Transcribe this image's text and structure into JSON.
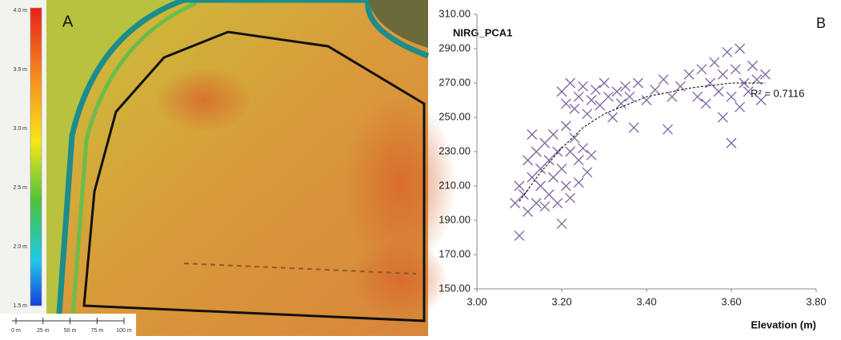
{
  "map": {
    "panel_label": "A",
    "colorbar_labels": [
      "4.0 m",
      "3.5 m",
      "3.0 m",
      "2.5 m",
      "2.0 m",
      "1.5 m"
    ],
    "scale_labels": [
      "0 m",
      "25 m",
      "50 m",
      "75 m",
      "100 m"
    ]
  },
  "chart_data": {
    "type": "scatter",
    "panel_label": "B",
    "y_label": "NIRG_PCA1",
    "x_label": "Elevation (m)",
    "annotation": "R² = 0.7116",
    "color": "#8064a2",
    "x": [
      3.1,
      3.09,
      3.1,
      3.11,
      3.12,
      3.12,
      3.13,
      3.13,
      3.14,
      3.14,
      3.15,
      3.15,
      3.16,
      3.16,
      3.17,
      3.17,
      3.18,
      3.18,
      3.19,
      3.19,
      3.2,
      3.2,
      3.21,
      3.21,
      3.22,
      3.22,
      3.23,
      3.24,
      3.24,
      3.25,
      3.26,
      3.27,
      3.2,
      3.21,
      3.22,
      3.23,
      3.24,
      3.25,
      3.26,
      3.27,
      3.28,
      3.29,
      3.3,
      3.31,
      3.32,
      3.33,
      3.34,
      3.35,
      3.36,
      3.37,
      3.38,
      3.4,
      3.42,
      3.44,
      3.45,
      3.46,
      3.48,
      3.5,
      3.52,
      3.53,
      3.54,
      3.55,
      3.56,
      3.57,
      3.58,
      3.58,
      3.59,
      3.6,
      3.6,
      3.61,
      3.62,
      3.62,
      3.63,
      3.64,
      3.65,
      3.66,
      3.67,
      3.68
    ],
    "values": [
      181,
      200,
      210,
      205,
      225,
      195,
      215,
      240,
      200,
      230,
      210,
      220,
      235,
      198,
      225,
      205,
      240,
      215,
      230,
      200,
      188,
      220,
      245,
      210,
      230,
      203,
      238,
      225,
      212,
      232,
      218,
      228,
      265,
      258,
      270,
      255,
      262,
      268,
      252,
      260,
      266,
      257,
      270,
      262,
      250,
      265,
      258,
      268,
      262,
      244,
      270,
      260,
      266,
      272,
      243,
      262,
      268,
      275,
      262,
      278,
      258,
      270,
      282,
      265,
      250,
      275,
      288,
      262,
      235,
      278,
      256,
      290,
      270,
      265,
      280,
      272,
      260,
      275
    ],
    "trendline": {
      "color": "#000000",
      "x": [
        3.1,
        3.15,
        3.2,
        3.25,
        3.3,
        3.4,
        3.5,
        3.6,
        3.68
      ],
      "values": [
        201,
        218,
        232,
        244,
        252,
        262,
        267,
        270,
        270
      ]
    },
    "xlim": [
      3.0,
      3.8
    ],
    "xticks": [
      {
        "value": 3.0,
        "label": "3.00"
      },
      {
        "value": 3.2,
        "label": "3.20"
      },
      {
        "value": 3.4,
        "label": "3.40"
      },
      {
        "value": 3.6,
        "label": "3.60"
      },
      {
        "value": 3.8,
        "label": "3.80"
      }
    ],
    "ylim": [
      150,
      310
    ],
    "yticks": [
      {
        "value": 150,
        "label": "150.00"
      },
      {
        "value": 170,
        "label": "170.00"
      },
      {
        "value": 190,
        "label": "190.00"
      },
      {
        "value": 210,
        "label": "210.00"
      },
      {
        "value": 230,
        "label": "230.00"
      },
      {
        "value": 250,
        "label": "250.00"
      },
      {
        "value": 270,
        "label": "270.00"
      },
      {
        "value": 290,
        "label": "290.00"
      },
      {
        "value": 310,
        "label": "310.00"
      }
    ],
    "grid": false
  }
}
